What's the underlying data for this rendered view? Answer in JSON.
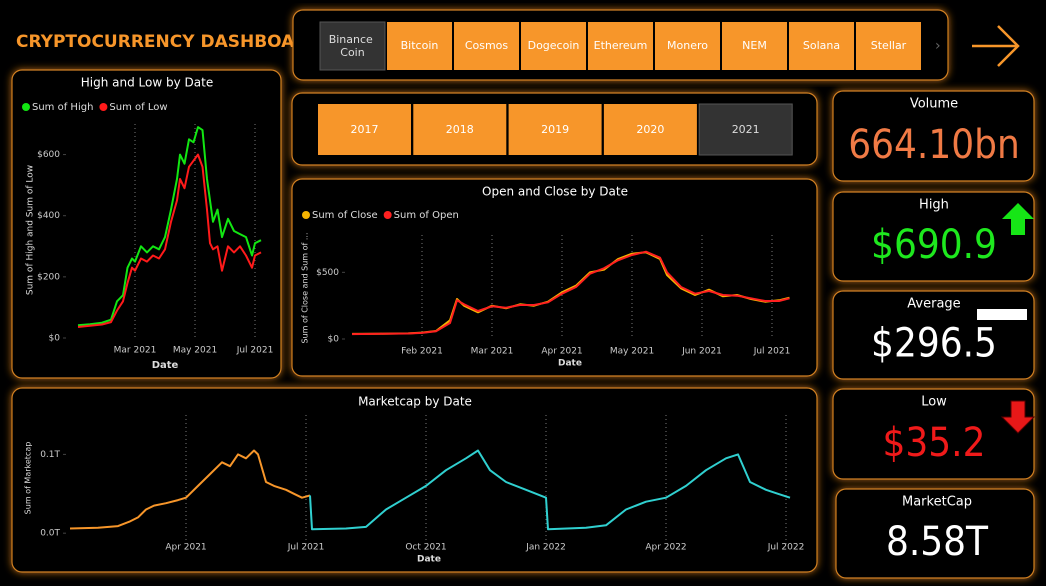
{
  "title": "CRYPTOCURRENCY DASHBOARD",
  "coins": [
    {
      "label": "Binance Coin",
      "selected": true
    },
    {
      "label": "Bitcoin"
    },
    {
      "label": "Cosmos"
    },
    {
      "label": "Dogecoin"
    },
    {
      "label": "Ethereum"
    },
    {
      "label": "Monero"
    },
    {
      "label": "NEM"
    },
    {
      "label": "Solana"
    },
    {
      "label": "Stellar"
    }
  ],
  "years": [
    {
      "label": "2017"
    },
    {
      "label": "2018"
    },
    {
      "label": "2019"
    },
    {
      "label": "2020"
    },
    {
      "label": "2021",
      "selected": true
    }
  ],
  "kpis": [
    {
      "label": "Volume",
      "value": "664.10bn",
      "color": "#f07a45"
    },
    {
      "label": "High",
      "value": "$690.9",
      "color": "#1ee81e"
    },
    {
      "label": "Average",
      "value": "$296.5",
      "color": "#ffffff"
    },
    {
      "label": "Low",
      "value": "$35.2",
      "color": "#f01a1a"
    },
    {
      "label": "MarketCap",
      "value": "8.58T",
      "color": "#ffffff"
    }
  ],
  "chart_data": [
    {
      "type": "line",
      "title": "High and Low by Date",
      "x_label": "Date",
      "y_label": "Sum of High and Sum of Low",
      "x": [
        0.1,
        0.5,
        0.9,
        1.2,
        1.4,
        1.6,
        1.75,
        1.9,
        2.0,
        2.2,
        2.4,
        2.6,
        2.8,
        3.0,
        3.2,
        3.4,
        3.5,
        3.65,
        3.8,
        3.95,
        4.1,
        4.25,
        4.4,
        4.5,
        4.6,
        4.75,
        4.9,
        5.1,
        5.3,
        5.5,
        5.7,
        5.9,
        6.0,
        6.2
      ],
      "series": [
        {
          "name": "Sum of High",
          "color": "#12e612",
          "values": [
            42,
            45,
            50,
            60,
            120,
            140,
            230,
            260,
            250,
            300,
            280,
            300,
            290,
            330,
            420,
            520,
            600,
            570,
            650,
            640,
            690,
            680,
            520,
            450,
            380,
            420,
            330,
            390,
            350,
            340,
            330,
            270,
            310,
            320
          ]
        },
        {
          "name": "Sum of Low",
          "color": "#ff1a1a",
          "values": [
            36,
            40,
            44,
            52,
            90,
            120,
            180,
            230,
            220,
            260,
            250,
            270,
            260,
            290,
            380,
            450,
            520,
            490,
            560,
            580,
            600,
            560,
            420,
            310,
            290,
            300,
            220,
            300,
            280,
            300,
            270,
            230,
            270,
            280
          ]
        }
      ],
      "xlim": [
        -0.3,
        6.5
      ],
      "xticks": [
        {
          "value": 2,
          "label": "Mar 2021"
        },
        {
          "value": 4,
          "label": "May 2021"
        },
        {
          "value": 6,
          "label": "Jul 2021"
        }
      ],
      "ylim": [
        0,
        700
      ],
      "yticks": [
        {
          "value": 0,
          "label": "$0"
        },
        {
          "value": 200,
          "label": "$200"
        },
        {
          "value": 400,
          "label": "$400"
        },
        {
          "value": 600,
          "label": "$600"
        }
      ],
      "grid": true
    },
    {
      "type": "line",
      "title": "Open and Close by Date",
      "x_label": "Date",
      "y_label": "Sum of Close and Sum of ...",
      "x": [
        0,
        0.4,
        0.8,
        1.0,
        1.2,
        1.4,
        1.5,
        1.6,
        1.8,
        2.0,
        2.2,
        2.4,
        2.6,
        2.8,
        3.0,
        3.2,
        3.4,
        3.6,
        3.8,
        4.0,
        4.2,
        4.4,
        4.5,
        4.7,
        4.9,
        5.1,
        5.3,
        5.5,
        5.7,
        5.9,
        6.1,
        6.25
      ],
      "series": [
        {
          "name": "Sum of Close",
          "color": "#f5b300",
          "values": [
            38,
            40,
            42,
            48,
            60,
            140,
            300,
            250,
            200,
            250,
            230,
            260,
            250,
            280,
            350,
            400,
            500,
            520,
            600,
            640,
            650,
            600,
            480,
            380,
            330,
            370,
            320,
            330,
            300,
            280,
            290,
            310
          ]
        },
        {
          "name": "Sum of Open",
          "color": "#ff2020",
          "values": [
            37,
            39,
            41,
            46,
            58,
            120,
            290,
            260,
            210,
            245,
            235,
            255,
            255,
            275,
            340,
            390,
            490,
            530,
            590,
            630,
            655,
            610,
            500,
            390,
            340,
            360,
            330,
            325,
            305,
            285,
            285,
            305
          ]
        }
      ],
      "xlim": [
        -0.1,
        6.4
      ],
      "xticks": [
        {
          "value": 1,
          "label": "Feb 2021"
        },
        {
          "value": 2,
          "label": "Mar 2021"
        },
        {
          "value": 3,
          "label": "Apr 2021"
        },
        {
          "value": 4,
          "label": "May 2021"
        },
        {
          "value": 5,
          "label": "Jun 2021"
        },
        {
          "value": 6,
          "label": "Jul 2021"
        }
      ],
      "ylim": [
        0,
        780
      ],
      "yticks": [
        {
          "value": 0,
          "label": "$0"
        },
        {
          "value": 500,
          "label": "$500"
        }
      ],
      "grid": true
    },
    {
      "type": "line",
      "title": "Marketcap by Date",
      "x_label": "Date",
      "y_label": "Sum of Marketcap",
      "series": [
        {
          "color": "#f7962a",
          "x": [
            0.1,
            0.8,
            1.3,
            1.6,
            1.8,
            2.0,
            2.2,
            2.5,
            2.8,
            3.0,
            3.3,
            3.6,
            3.9,
            4.1,
            4.3,
            4.5,
            4.7,
            4.8,
            5.0,
            5.2,
            5.5,
            5.7,
            5.9,
            6.1
          ],
          "values": [
            0.006,
            0.007,
            0.009,
            0.015,
            0.02,
            0.03,
            0.035,
            0.038,
            0.042,
            0.045,
            0.06,
            0.075,
            0.09,
            0.085,
            0.1,
            0.095,
            0.105,
            0.1,
            0.065,
            0.06,
            0.055,
            0.05,
            0.045,
            0.048
          ]
        },
        {
          "color": "#30d0d0",
          "x": [
            6.1,
            6.15,
            7.0,
            7.5,
            8.0,
            8.5,
            9.0,
            9.5,
            10.0,
            10.3,
            10.6,
            11.0,
            11.5,
            12.0,
            12.05,
            13.0,
            13.5,
            14.0,
            14.5,
            15.0,
            15.5,
            16.0,
            16.5,
            16.8,
            17.1,
            17.5,
            17.8,
            18.1
          ],
          "values": [
            0.048,
            0.005,
            0.006,
            0.008,
            0.03,
            0.045,
            0.06,
            0.08,
            0.095,
            0.105,
            0.08,
            0.065,
            0.055,
            0.045,
            0.005,
            0.007,
            0.01,
            0.03,
            0.04,
            0.045,
            0.06,
            0.08,
            0.095,
            0.1,
            0.065,
            0.055,
            0.05,
            0.045
          ]
        }
      ],
      "xlim": [
        0,
        18.3
      ],
      "xticks": [
        {
          "value": 3,
          "label": "Apr 2021"
        },
        {
          "value": 6,
          "label": "Jul 2021"
        },
        {
          "value": 9,
          "label": "Oct 2021"
        },
        {
          "value": 12,
          "label": "Jan 2022"
        },
        {
          "value": 15,
          "label": "Apr 2022"
        },
        {
          "value": 18,
          "label": "Jul 2022"
        }
      ],
      "ylim": [
        -0.015,
        0.15
      ],
      "yticks": [
        {
          "value": 0,
          "label": "0.0T"
        },
        {
          "value": 0.1,
          "label": "0.1T"
        }
      ],
      "grid": true
    }
  ]
}
